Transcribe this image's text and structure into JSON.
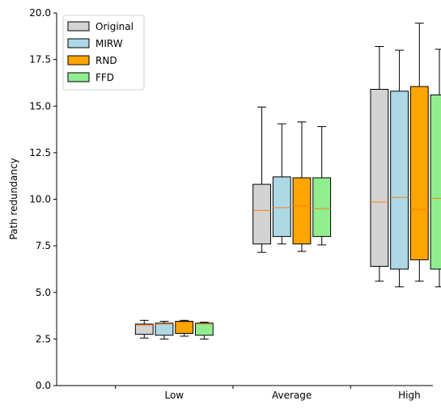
{
  "chart_data": {
    "type": "box",
    "title": "",
    "xlabel": "",
    "ylabel": "Path redundancy",
    "ylim": [
      0,
      20
    ],
    "yticks": [
      "0.0",
      "2.5",
      "5.0",
      "7.5",
      "10.0",
      "12.5",
      "15.0",
      "17.5",
      "20.0"
    ],
    "categories": [
      "Low",
      "Average",
      "High"
    ],
    "grid": false,
    "legend_position": "top-left",
    "median_color": "#ff7f0e",
    "series": [
      {
        "name": "Original",
        "color": "#d3d3d3",
        "boxes": [
          {
            "whislo": 2.55,
            "q1": 2.75,
            "med": 3.25,
            "q3": 3.3,
            "whishi": 3.5
          },
          {
            "whislo": 7.15,
            "q1": 7.6,
            "med": 9.4,
            "q3": 10.8,
            "whishi": 14.95
          },
          {
            "whislo": 5.6,
            "q1": 6.4,
            "med": 9.85,
            "q3": 15.9,
            "whishi": 18.2
          }
        ]
      },
      {
        "name": "MIRW",
        "color": "#add8e6",
        "boxes": [
          {
            "whislo": 2.5,
            "q1": 2.7,
            "med": 3.3,
            "q3": 3.35,
            "whishi": 3.45
          },
          {
            "whislo": 7.6,
            "q1": 8.0,
            "med": 9.55,
            "q3": 11.2,
            "whishi": 14.05
          },
          {
            "whislo": 5.3,
            "q1": 6.25,
            "med": 10.1,
            "q3": 15.8,
            "whishi": 18.0
          }
        ]
      },
      {
        "name": "RND",
        "color": "#ffa500",
        "boxes": [
          {
            "whislo": 2.65,
            "q1": 2.8,
            "med": 3.4,
            "q3": 3.45,
            "whishi": 3.5
          },
          {
            "whislo": 7.2,
            "q1": 7.6,
            "med": 9.65,
            "q3": 11.15,
            "whishi": 14.15
          },
          {
            "whislo": 5.6,
            "q1": 6.75,
            "med": 9.45,
            "q3": 16.05,
            "whishi": 19.45
          }
        ]
      },
      {
        "name": "FFD",
        "color": "#90ee90",
        "boxes": [
          {
            "whislo": 2.5,
            "q1": 2.7,
            "med": 3.3,
            "q3": 3.35,
            "whishi": 3.4
          },
          {
            "whislo": 7.55,
            "q1": 8.0,
            "med": 9.5,
            "q3": 11.15,
            "whishi": 13.9
          },
          {
            "whislo": 5.3,
            "q1": 6.25,
            "med": 10.05,
            "q3": 15.6,
            "whishi": 18.05
          }
        ]
      }
    ]
  }
}
